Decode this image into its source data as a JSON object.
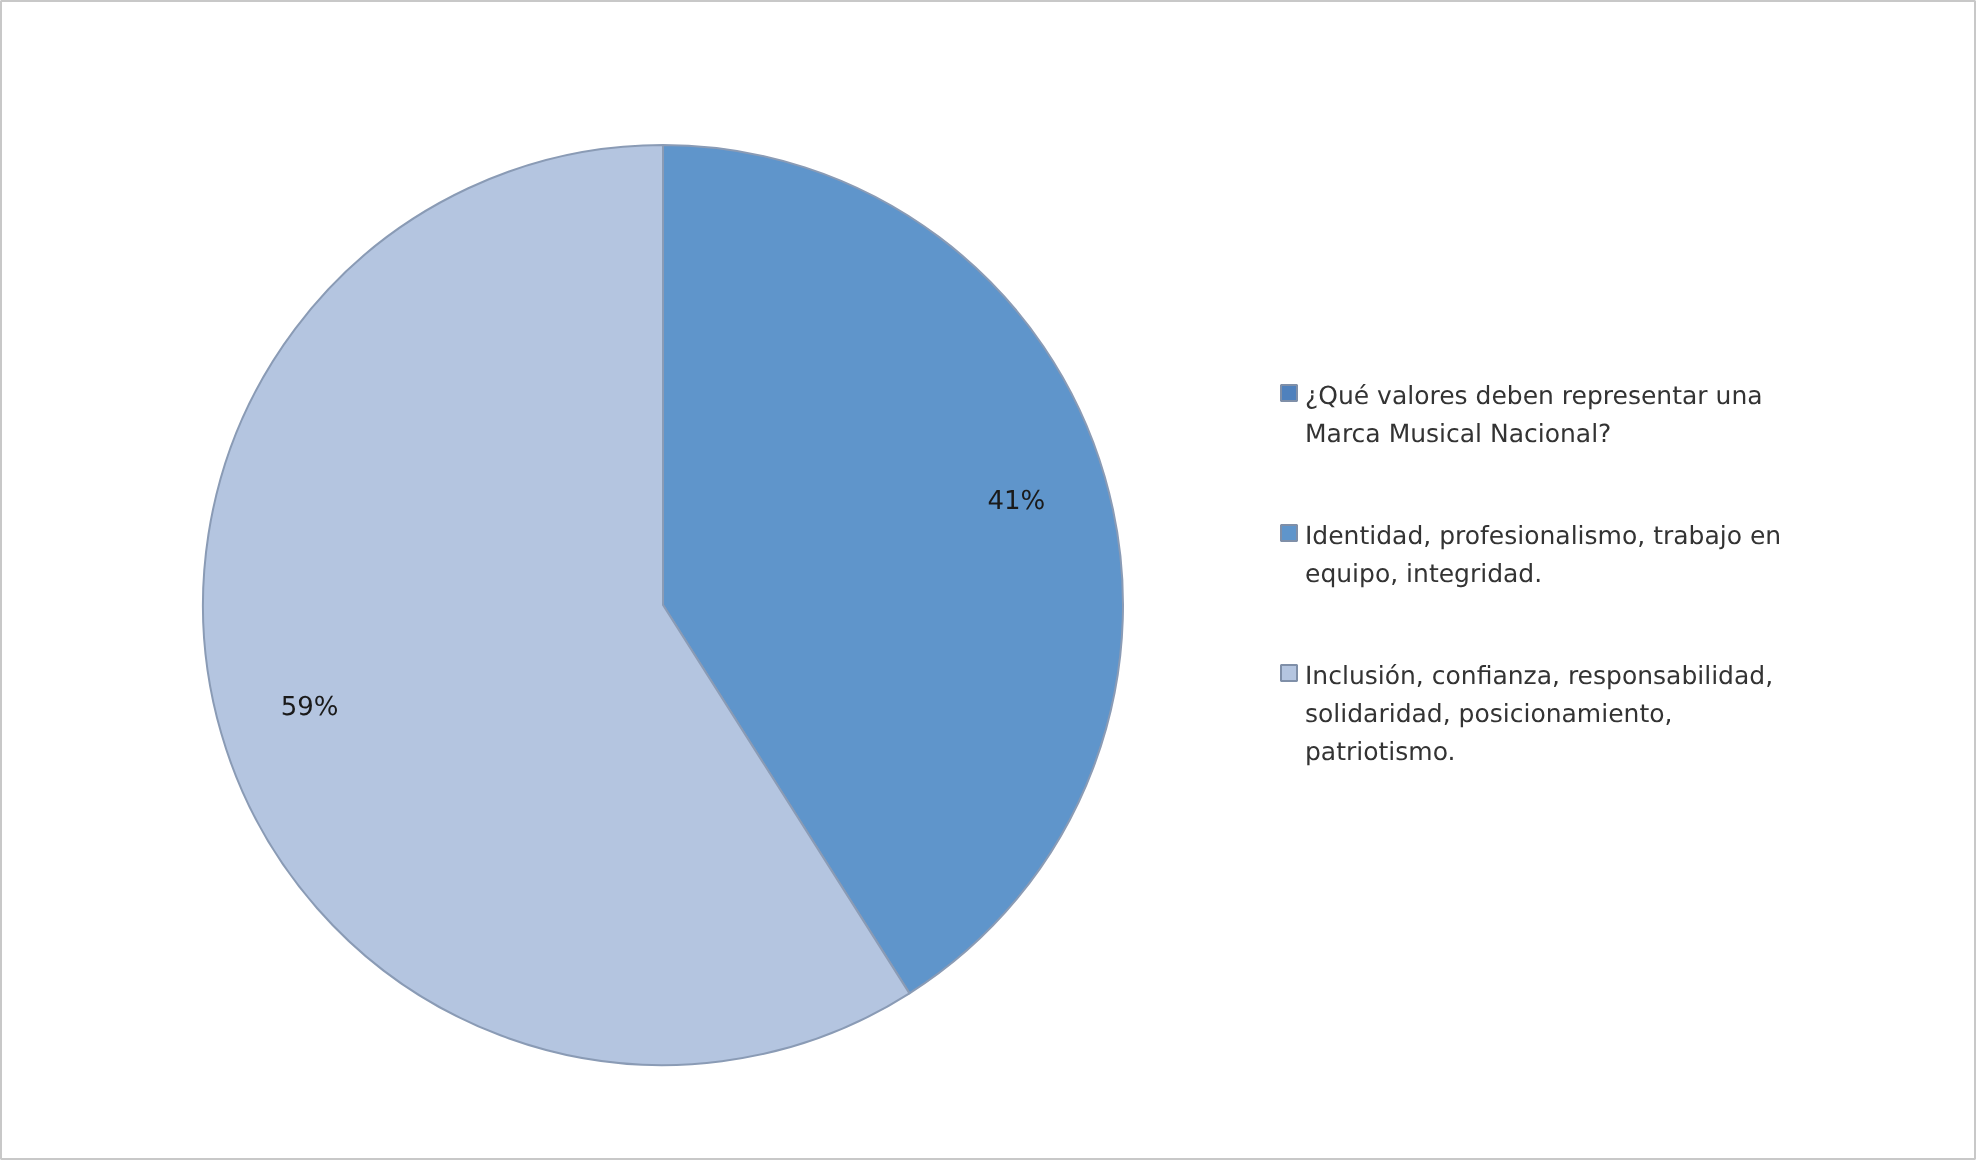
{
  "chart_data": {
    "type": "pie",
    "categories": [
      "¿Qué valores deben representar una Marca Musical Nacional?",
      "Identidad, profesionalismo, trabajo en equipo, integridad.",
      "Inclusión, confianza, responsabilidad, solidaridad, posicionamiento, patriotismo."
    ],
    "values": [
      0,
      41,
      59
    ],
    "colors": [
      "#4f81bd",
      "#5f95cb",
      "#b4c5e0"
    ],
    "value_labels": [
      null,
      "41%",
      "59%"
    ],
    "legend": "right"
  }
}
